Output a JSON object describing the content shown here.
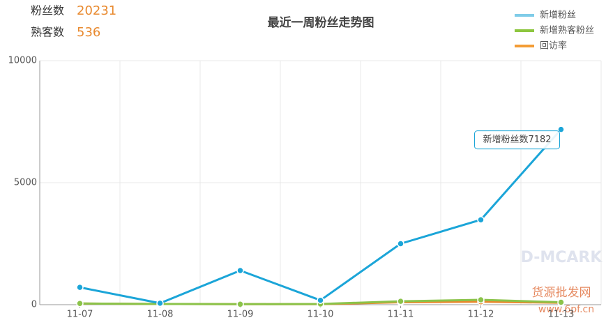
{
  "stats": [
    {
      "label": "粉丝数",
      "value": "20231"
    },
    {
      "label": "熟客数",
      "value": "536"
    }
  ],
  "watermark": [
    "D-MCARK",
    "货源批发网",
    "www.6pf.cn"
  ],
  "chart_data": {
    "type": "line",
    "title": "最近一周粉丝走势图",
    "categories": [
      "11-07",
      "11-08",
      "11-09",
      "11-10",
      "11-11",
      "11-12",
      "11-13"
    ],
    "series": [
      {
        "name": "新增粉丝",
        "color": "#1ba5d8",
        "legend_color": "#7fcce8",
        "values": [
          710,
          60,
          1400,
          180,
          2500,
          3480,
          7182
        ]
      },
      {
        "name": "新增熟客粉丝",
        "color": "#8bc34a",
        "legend_color": "#8dc63f",
        "values": [
          50,
          30,
          20,
          30,
          140,
          200,
          100
        ]
      },
      {
        "name": "回访率",
        "color": "#e8892e",
        "legend_color": "#f39c35",
        "values": [
          50,
          30,
          20,
          20,
          100,
          120,
          80
        ]
      }
    ],
    "ylim": [
      0,
      10000
    ],
    "yticks": [
      0,
      5000,
      10000
    ],
    "grid": true,
    "tooltip": {
      "series": 0,
      "index": 6,
      "text": "新增粉丝数7182"
    }
  }
}
